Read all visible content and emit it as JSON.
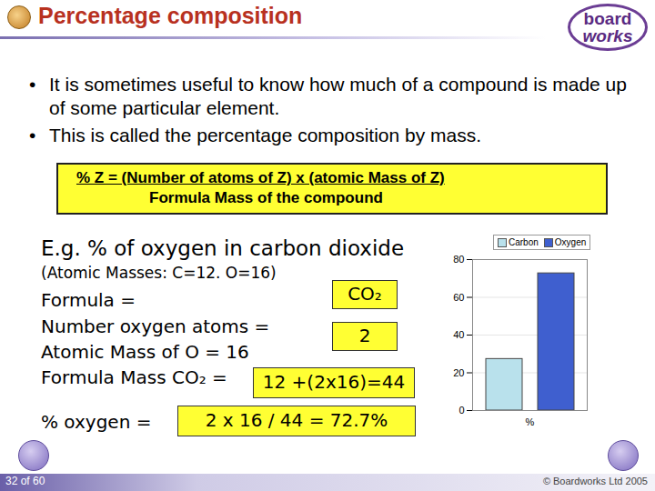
{
  "header": {
    "title": "Percentage composition",
    "logo": [
      "board",
      "works"
    ]
  },
  "bullets": [
    "It is sometimes useful to know how much of a compound is made up of some particular element.",
    "This is called the percentage composition by mass."
  ],
  "formula": {
    "numerator": "% Z = (Number of atoms of Z)  x (atomic Mass of Z)",
    "denominator": "Formula Mass of the compound"
  },
  "example": {
    "heading": "E.g. % of oxygen in carbon dioxide",
    "masses": "(Atomic Masses:  C=12.  O=16)",
    "rows": [
      {
        "label": "Formula =",
        "answer": "CO₂"
      },
      {
        "label": "Number  oxygen atoms =",
        "answer": "2"
      },
      {
        "label": "Atomic Mass of O = 16"
      },
      {
        "label": "Formula Mass CO₂ =",
        "answer": "12 +(2x16)=44"
      },
      {
        "label": "% oxygen =",
        "answer": "2 x 16 / 44 = 72.7%"
      }
    ]
  },
  "footer": {
    "page": "32 of 60",
    "copyright": "© Boardworks Ltd 2005"
  },
  "chart_data": {
    "type": "bar",
    "categories": [
      "%"
    ],
    "series": [
      {
        "name": "Carbon",
        "color": "#b9e1ec",
        "values": [
          27.3
        ]
      },
      {
        "name": "Oxygen",
        "color": "#3f5fcf",
        "values": [
          72.7
        ]
      }
    ],
    "ylim": [
      0,
      80
    ],
    "yticks": [
      0,
      20,
      40,
      60,
      80
    ],
    "grid": true,
    "legend": "top"
  }
}
